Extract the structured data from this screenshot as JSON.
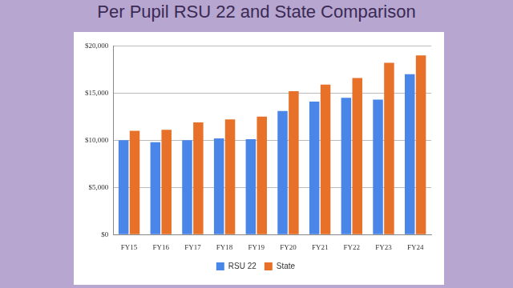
{
  "chart_data": {
    "type": "bar",
    "title": "Per Pupil RSU 22 and  State Comparison",
    "categories": [
      "FY15",
      "FY16",
      "FY17",
      "FY18",
      "FY19",
      "FY20",
      "FY21",
      "FY22",
      "FY23",
      "FY24"
    ],
    "series": [
      {
        "name": "RSU 22",
        "color": "#4a86e8",
        "values": [
          10000,
          9800,
          10000,
          10200,
          10100,
          13100,
          14100,
          14500,
          14300,
          17000
        ]
      },
      {
        "name": "State",
        "color": "#e8712a",
        "values": [
          11000,
          11100,
          11900,
          12200,
          12500,
          15200,
          15900,
          16600,
          18200,
          19000
        ]
      }
    ],
    "ylim": [
      0,
      20000
    ],
    "yticks": [
      {
        "value": 0,
        "label": "$0"
      },
      {
        "value": 5000,
        "label": "$5,000"
      },
      {
        "value": 10000,
        "label": "$10,000"
      },
      {
        "value": 15000,
        "label": "$15,000"
      },
      {
        "value": 20000,
        "label": "$20,000"
      }
    ],
    "grid": true,
    "legend": "bottom"
  }
}
